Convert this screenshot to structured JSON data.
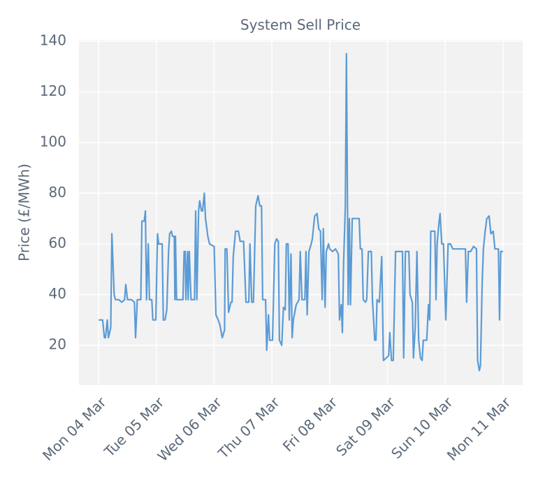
{
  "chart_data": {
    "type": "line",
    "title": "System Sell Price",
    "ylabel": "Price (£/MWh)",
    "x": [
      0,
      0.07,
      0.1,
      0.12,
      0.15,
      0.17,
      0.21,
      0.23,
      0.27,
      0.29,
      0.35,
      0.4,
      0.45,
      0.47,
      0.5,
      0.57,
      0.62,
      0.64,
      0.67,
      0.73,
      0.75,
      0.79,
      0.81,
      0.83,
      0.86,
      0.88,
      0.92,
      0.94,
      0.99,
      1.02,
      1.04,
      1.1,
      1.12,
      1.15,
      1.18,
      1.21,
      1.23,
      1.26,
      1.28,
      1.31,
      1.32,
      1.33,
      1.35,
      1.41,
      1.46,
      1.48,
      1.5,
      1.51,
      1.54,
      1.55,
      1.57,
      1.6,
      1.66,
      1.68,
      1.7,
      1.73,
      1.75,
      1.78,
      1.8,
      1.83,
      1.85,
      1.89,
      1.92,
      2.0,
      2.03,
      2.07,
      2.1,
      2.14,
      2.18,
      2.19,
      2.22,
      2.25,
      2.29,
      2.31,
      2.33,
      2.37,
      2.42,
      2.45,
      2.51,
      2.55,
      2.6,
      2.62,
      2.65,
      2.68,
      2.72,
      2.76,
      2.79,
      2.82,
      2.84,
      2.89,
      2.91,
      2.94,
      2.96,
      3.01,
      3.05,
      3.08,
      3.11,
      3.13,
      3.17,
      3.2,
      3.23,
      3.25,
      3.28,
      3.3,
      3.33,
      3.35,
      3.37,
      3.42,
      3.47,
      3.49,
      3.52,
      3.57,
      3.59,
      3.61,
      3.64,
      3.68,
      3.7,
      3.74,
      3.78,
      3.81,
      3.84,
      3.87,
      3.89,
      3.92,
      3.94,
      3.98,
      4.0,
      4.05,
      4.1,
      4.15,
      4.17,
      4.2,
      4.22,
      4.24,
      4.27,
      4.29,
      4.32,
      4.34,
      4.36,
      4.39,
      4.51,
      4.53,
      4.56,
      4.58,
      4.62,
      4.64,
      4.67,
      4.72,
      4.74,
      4.78,
      4.8,
      4.82,
      4.86,
      4.9,
      4.93,
      4.98,
      5.02,
      5.04,
      5.07,
      5.1,
      5.14,
      5.26,
      5.28,
      5.31,
      5.37,
      5.39,
      5.43,
      5.45,
      5.48,
      5.51,
      5.54,
      5.57,
      5.6,
      5.62,
      5.68,
      5.71,
      5.73,
      5.75,
      5.82,
      5.84,
      5.86,
      5.89,
      5.91,
      5.94,
      5.97,
      6.01,
      6.05,
      6.09,
      6.13,
      6.27,
      6.35,
      6.37,
      6.4,
      6.44,
      6.49,
      6.54,
      6.56,
      6.59,
      6.61,
      6.64,
      6.66,
      6.69,
      6.72,
      6.76,
      6.79,
      6.83,
      6.86,
      6.92,
      6.94,
      6.96,
      7.0
    ],
    "values": [
      30,
      30,
      23,
      23,
      30,
      23,
      27,
      64,
      40,
      38,
      38,
      37,
      38,
      44,
      38,
      38,
      37,
      23,
      38,
      38,
      69,
      69,
      73,
      38,
      60,
      38,
      38,
      30,
      30,
      64,
      60,
      60,
      30,
      30,
      34,
      57,
      64,
      65,
      63,
      63,
      38,
      63,
      38,
      38,
      38,
      57,
      57,
      38,
      57,
      38,
      57,
      38,
      38,
      73,
      38,
      73,
      77,
      73,
      73,
      80,
      70,
      63,
      60,
      59,
      32,
      30,
      28,
      23,
      26,
      58,
      58,
      33,
      37,
      37,
      55,
      65,
      65,
      61,
      61,
      37,
      37,
      60,
      37,
      37,
      75,
      79,
      75,
      75,
      38,
      38,
      18,
      32,
      22,
      22,
      60,
      62,
      61,
      22,
      20,
      35,
      34,
      60,
      60,
      30,
      56,
      23,
      30,
      36,
      38,
      57,
      38,
      38,
      57,
      32,
      57,
      60,
      62,
      71,
      72,
      66,
      65,
      38,
      66,
      35,
      57,
      60,
      58,
      57,
      58,
      56,
      30,
      36,
      25,
      52,
      75,
      135,
      36,
      70,
      36,
      70,
      70,
      58,
      58,
      38,
      37,
      38,
      57,
      57,
      38,
      22,
      22,
      38,
      37,
      55,
      14,
      15,
      16,
      25,
      14,
      14,
      57,
      57,
      15,
      57,
      57,
      40,
      37,
      15,
      27,
      57,
      22,
      15,
      14,
      22,
      22,
      36,
      30,
      65,
      65,
      38,
      60,
      68,
      72,
      60,
      60,
      30,
      60,
      60,
      58,
      58,
      58,
      37,
      57,
      57,
      59,
      58,
      14,
      10,
      12,
      45,
      58,
      65,
      70,
      71,
      64,
      65,
      58,
      58,
      30,
      57,
      57
    ],
    "color": "#5b9bd5",
    "xlim": [
      -0.34,
      7.34
    ],
    "xticks": [
      {
        "value": 0,
        "label": "Mon 04 Mar"
      },
      {
        "value": 1,
        "label": "Tue 05 Mar"
      },
      {
        "value": 2,
        "label": "Wed 06 Mar"
      },
      {
        "value": 3,
        "label": "Thu 07 Mar"
      },
      {
        "value": 4,
        "label": "Fri 08 Mar"
      },
      {
        "value": 5,
        "label": "Sat 09 Mar"
      },
      {
        "value": 6,
        "label": "Sun 10 Mar"
      },
      {
        "value": 7,
        "label": "Mon 11 Mar"
      }
    ],
    "ylim": [
      4.3,
      140.5
    ],
    "yticks": [
      20,
      40,
      60,
      80,
      100,
      120,
      140
    ],
    "grid": true
  }
}
